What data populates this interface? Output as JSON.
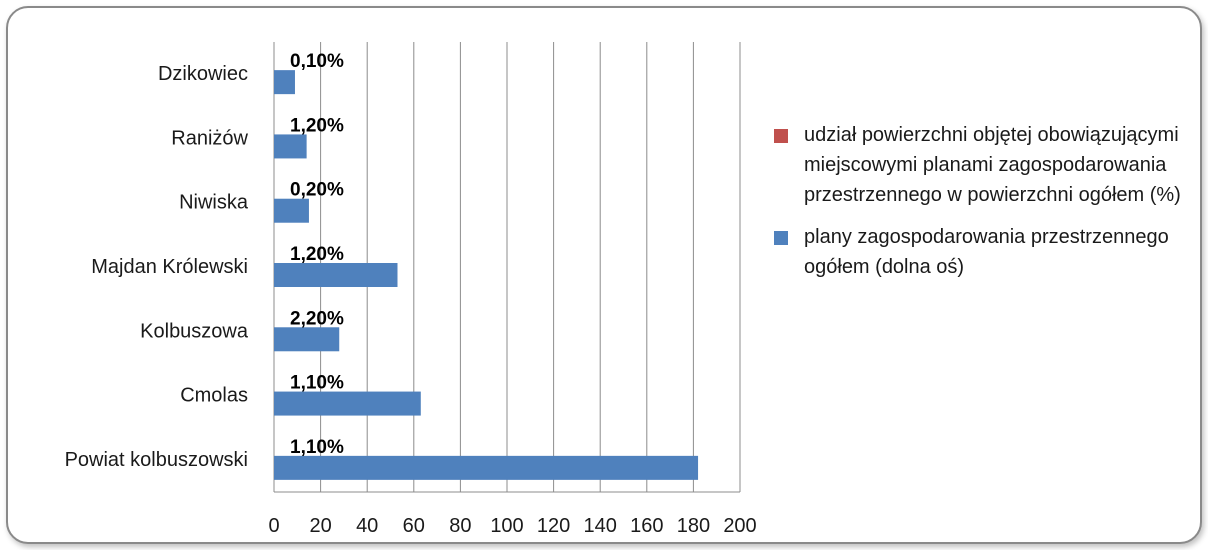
{
  "chart_data": {
    "type": "bar",
    "orientation": "horizontal",
    "title": "",
    "xlabel": "",
    "ylabel": "",
    "categories": [
      "Dzikowiec",
      "Raniżów",
      "Niwiska",
      "Majdan Królewski",
      "Kolbuszowa",
      "Cmolas",
      "Powiat kolbuszowski"
    ],
    "xlim": [
      0,
      200
    ],
    "ticks": [
      "0",
      "20",
      "40",
      "60",
      "80",
      "100",
      "120",
      "140",
      "160",
      "180",
      "200"
    ],
    "tick_values": [
      0,
      20,
      40,
      60,
      80,
      100,
      120,
      140,
      160,
      180,
      200
    ],
    "grid": true,
    "legend_position": "right",
    "series": [
      {
        "name": "plany zagospodarowania przestrzennego ogółem (dolna oś)",
        "color": "#4F81BD",
        "values": [
          9,
          14,
          15,
          53,
          28,
          63,
          182
        ]
      },
      {
        "name": "udział powierzchni objętej obowiązującymi miejscowymi planami zagospodarowania przestrzennego w powierzchni ogółem (%)",
        "color": "#C0504D",
        "values": [
          0.1,
          1.2,
          0.2,
          1.2,
          2.2,
          1.1,
          1.1
        ],
        "labels": [
          "0,10%",
          "1,20%",
          "0,20%",
          "1,20%",
          "2,20%",
          "1,10%",
          "1,10%"
        ]
      }
    ]
  }
}
